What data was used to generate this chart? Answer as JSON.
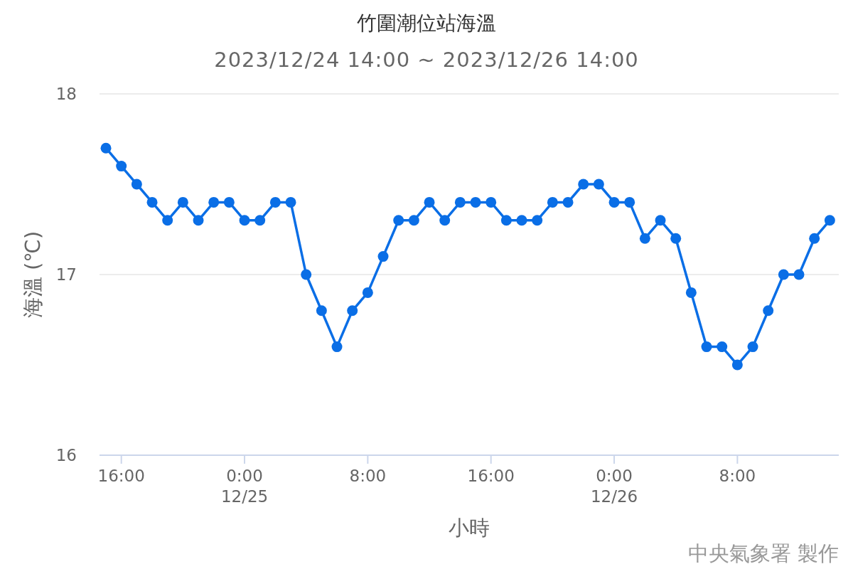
{
  "chart_data": {
    "type": "line",
    "title": "竹圍潮位站海溫",
    "subtitle": "2023/12/24 14:00 ~ 2023/12/26 14:00",
    "xlabel": "小時",
    "ylabel": "海溫 (℃)",
    "x": [
      "2023-12-24T15:00",
      "2023-12-24T16:00",
      "2023-12-24T17:00",
      "2023-12-24T18:00",
      "2023-12-24T19:00",
      "2023-12-24T20:00",
      "2023-12-24T21:00",
      "2023-12-24T22:00",
      "2023-12-24T23:00",
      "2023-12-25T00:00",
      "2023-12-25T01:00",
      "2023-12-25T02:00",
      "2023-12-25T03:00",
      "2023-12-25T04:00",
      "2023-12-25T05:00",
      "2023-12-25T06:00",
      "2023-12-25T07:00",
      "2023-12-25T08:00",
      "2023-12-25T09:00",
      "2023-12-25T10:00",
      "2023-12-25T11:00",
      "2023-12-25T12:00",
      "2023-12-25T13:00",
      "2023-12-25T14:00",
      "2023-12-25T15:00",
      "2023-12-25T16:00",
      "2023-12-25T17:00",
      "2023-12-25T18:00",
      "2023-12-25T19:00",
      "2023-12-25T20:00",
      "2023-12-25T21:00",
      "2023-12-25T22:00",
      "2023-12-25T23:00",
      "2023-12-26T00:00",
      "2023-12-26T01:00",
      "2023-12-26T02:00",
      "2023-12-26T03:00",
      "2023-12-26T04:00",
      "2023-12-26T05:00",
      "2023-12-26T06:00",
      "2023-12-26T07:00",
      "2023-12-26T08:00",
      "2023-12-26T09:00",
      "2023-12-26T10:00",
      "2023-12-26T11:00",
      "2023-12-26T12:00",
      "2023-12-26T13:00",
      "2023-12-26T14:00"
    ],
    "series": [
      {
        "color": "#0a6ee6",
        "values": [
          17.7,
          17.6,
          17.5,
          17.4,
          17.3,
          17.4,
          17.3,
          17.4,
          17.4,
          17.3,
          17.3,
          17.4,
          17.4,
          17.0,
          16.8,
          16.6,
          16.8,
          16.9,
          17.1,
          17.3,
          17.3,
          17.4,
          17.3,
          17.4,
          17.4,
          17.4,
          17.3,
          17.3,
          17.3,
          17.4,
          17.4,
          17.5,
          17.5,
          17.4,
          17.4,
          17.2,
          17.3,
          17.2,
          16.9,
          16.6,
          16.6,
          16.5,
          16.6,
          16.8,
          17.0,
          17.0,
          17.2,
          17.3
        ]
      }
    ],
    "xlim": [
      "2023-12-24T14:35",
      "2023-12-26T14:35"
    ],
    "xticks": [
      {
        "value": "2023-12-24T16:00",
        "label": "16:00"
      },
      {
        "value": "2023-12-25T00:00",
        "label": "0:00\n12/25"
      },
      {
        "value": "2023-12-25T08:00",
        "label": "8:00"
      },
      {
        "value": "2023-12-25T16:00",
        "label": "16:00"
      },
      {
        "value": "2023-12-26T00:00",
        "label": "0:00\n12/26"
      },
      {
        "value": "2023-12-26T08:00",
        "label": "8:00"
      }
    ],
    "ylim": [
      16,
      18
    ],
    "yticks": [
      16,
      17,
      18
    ],
    "grid": "y",
    "marker": "circle",
    "line_style": "solid",
    "annotations": [
      "中央氣象署 製作"
    ]
  }
}
